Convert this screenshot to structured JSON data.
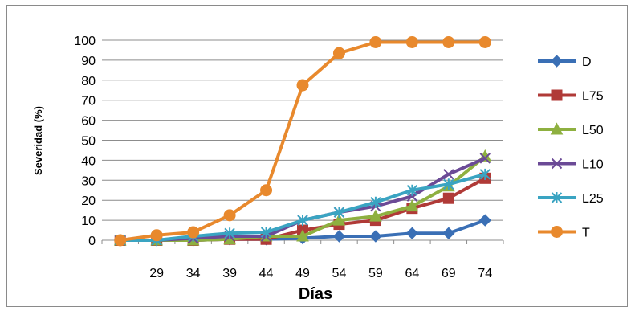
{
  "chart_data": {
    "type": "line",
    "title": "",
    "xlabel": "Días",
    "ylabel": "Severidad (%)",
    "ylim": [
      0,
      100
    ],
    "yticks": [
      "0",
      "10",
      "20",
      "30",
      "40",
      "50",
      "60",
      "70",
      "80",
      "90",
      "100"
    ],
    "categories": [
      "",
      "29",
      "34",
      "39",
      "44",
      "49",
      "54",
      "59",
      "64",
      "69",
      "74"
    ],
    "grid": true,
    "legend_position": "right",
    "series": [
      {
        "name": "D",
        "color": "#3a6fb5",
        "marker": "diamond",
        "values": [
          0,
          0,
          0,
          0.5,
          0.5,
          1,
          2,
          2,
          3.5,
          3.5,
          10
        ]
      },
      {
        "name": "L75",
        "color": "#b03a37",
        "marker": "square",
        "values": [
          0,
          0,
          0,
          0.5,
          0.5,
          5,
          8,
          10,
          16,
          21,
          31
        ]
      },
      {
        "name": "L50",
        "color": "#8eb040",
        "marker": "triangle",
        "values": [
          0,
          0,
          0,
          0.5,
          2,
          2,
          10,
          12,
          17,
          27,
          42
        ]
      },
      {
        "name": "L10",
        "color": "#6b4a96",
        "marker": "x",
        "values": [
          0,
          0,
          1,
          2,
          2,
          10,
          14,
          17,
          22,
          33,
          41
        ]
      },
      {
        "name": "L25",
        "color": "#3aa4c2",
        "marker": "star",
        "values": [
          0,
          0,
          2,
          3.5,
          4,
          10,
          14,
          19,
          25,
          28,
          33
        ]
      },
      {
        "name": "T",
        "color": "#e8892d",
        "marker": "circle",
        "values": [
          0,
          2.5,
          4,
          12.5,
          25,
          77.5,
          93.5,
          99,
          99,
          99,
          99
        ]
      }
    ]
  }
}
